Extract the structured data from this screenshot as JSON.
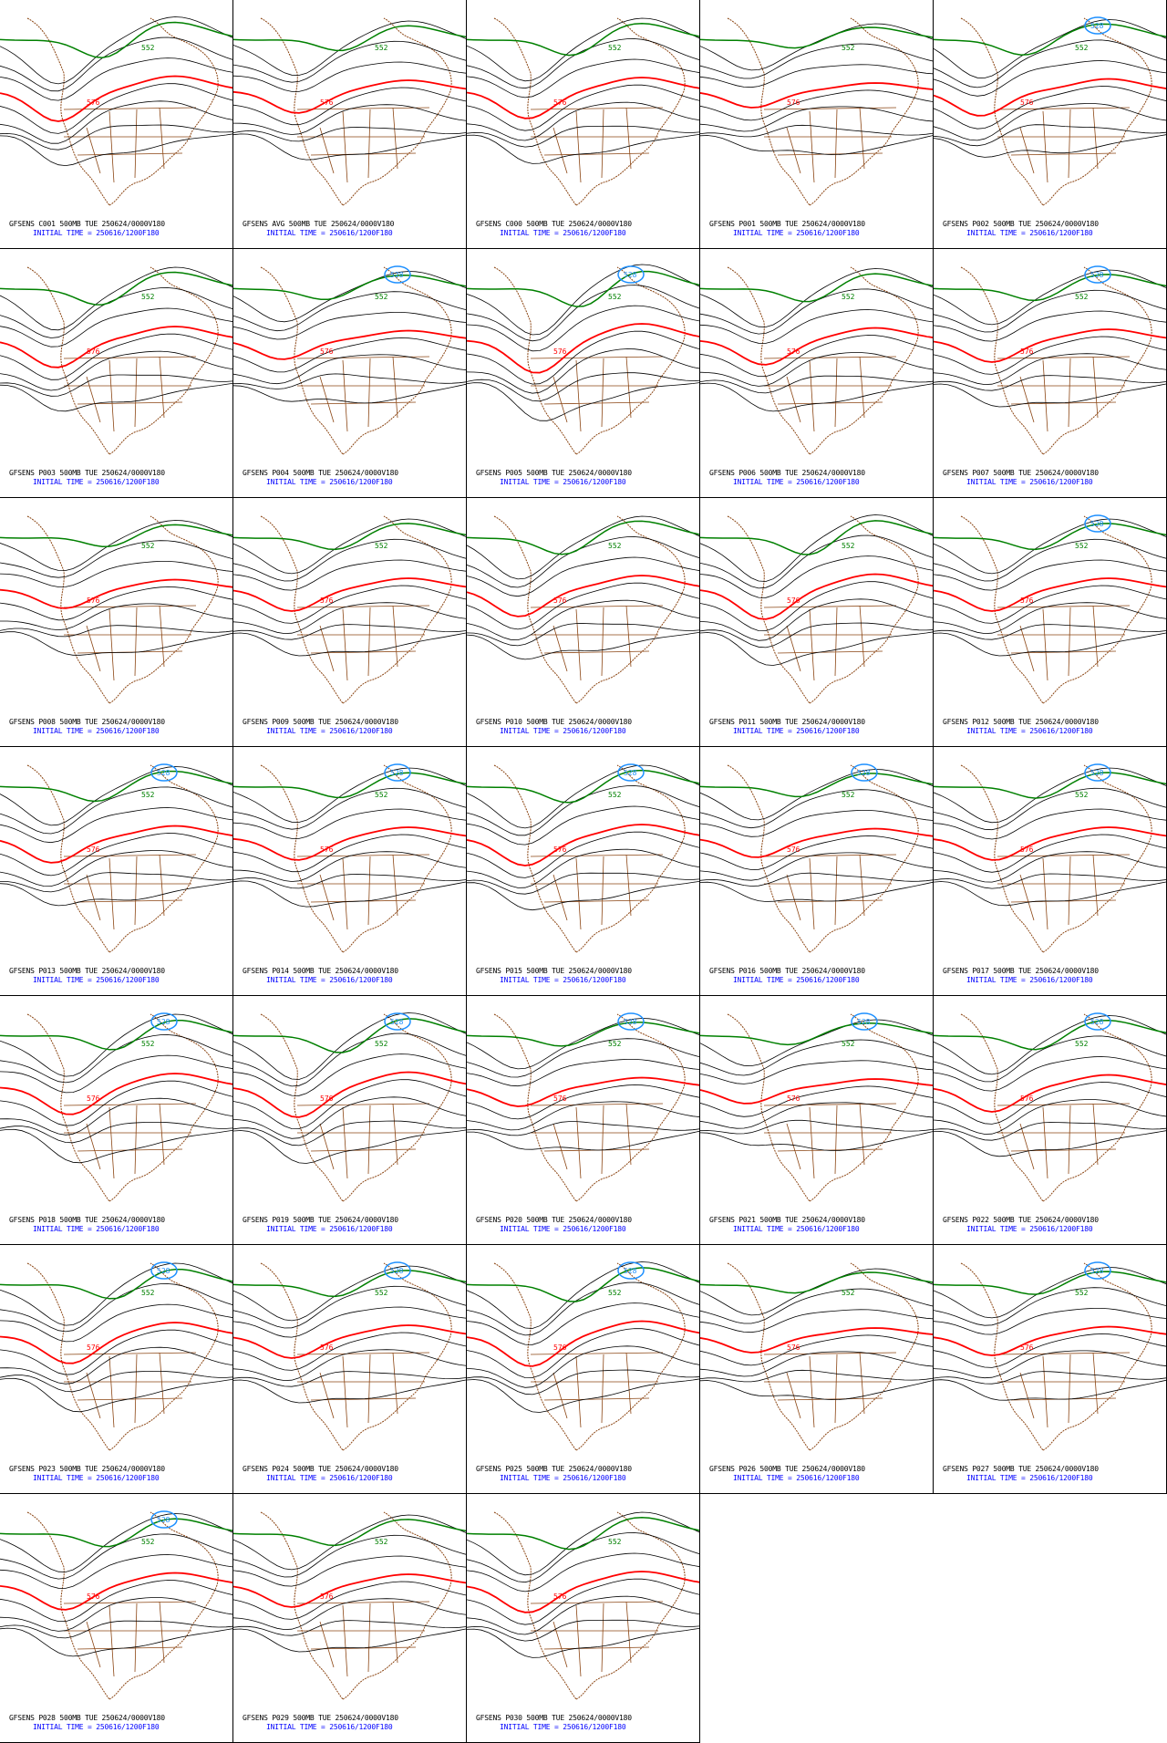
{
  "colors": {
    "background": "#ffffff",
    "contour": "#000000",
    "contour_576": "#ff0000",
    "contour_552": "#008000",
    "contour_low": "#1e90ff",
    "coast": "#8b4513",
    "init_text": "#0000ff"
  },
  "contour_labels": {
    "main": "576",
    "north": "552",
    "low": "528"
  },
  "panels": [
    {
      "title": "GFSENS C001 500MB TUE 250624/0000V180",
      "init": "INITIAL TIME = 250616/1200F180",
      "trough": 0.5,
      "amp": 0.55,
      "low": false,
      "ridge": 0.3
    },
    {
      "title": "GFSENS AVG 500MB TUE 250624/0000V180",
      "init": "INITIAL TIME = 250616/1200F180",
      "trough": 0.55,
      "amp": 0.4,
      "low": false,
      "ridge": 0.25
    },
    {
      "title": "GFSENS C000 500MB TUE 250624/0000V180",
      "init": "INITIAL TIME = 250616/1200F180",
      "trough": 0.52,
      "amp": 0.5,
      "low": false,
      "ridge": 0.35
    },
    {
      "title": "GFSENS P001 500MB TUE 250624/0000V180",
      "init": "INITIAL TIME = 250616/1200F180",
      "trough": 0.45,
      "amp": 0.3,
      "low": false,
      "ridge": 0.2
    },
    {
      "title": "GFSENS P002 500MB TUE 250624/0000V180",
      "init": "INITIAL TIME = 250616/1200F180",
      "trough": 0.4,
      "amp": 0.45,
      "low": true,
      "ridge": 0.4
    },
    {
      "title": "GFSENS P003 500MB TUE 250624/0000V180",
      "init": "INITIAL TIME = 250616/1200F180",
      "trough": 0.48,
      "amp": 0.5,
      "low": false,
      "ridge": 0.3
    },
    {
      "title": "GFSENS P004 500MB TUE 250624/0000V180",
      "init": "INITIAL TIME = 250616/1200F180",
      "trough": 0.42,
      "amp": 0.35,
      "low": true,
      "ridge": 0.25
    },
    {
      "title": "GFSENS P005 500MB TUE 250624/0000V180",
      "init": "INITIAL TIME = 250616/1200F180",
      "trough": 0.6,
      "amp": 0.6,
      "low": true,
      "ridge": 0.35
    },
    {
      "title": "GFSENS P006 500MB TUE 250624/0000V180",
      "init": "INITIAL TIME = 250616/1200F180",
      "trough": 0.55,
      "amp": 0.45,
      "low": false,
      "ridge": 0.3
    },
    {
      "title": "GFSENS P007 500MB TUE 250624/0000V180",
      "init": "INITIAL TIME = 250616/1200F180",
      "trough": 0.5,
      "amp": 0.4,
      "low": true,
      "ridge": 0.35
    },
    {
      "title": "GFSENS P008 500MB TUE 250624/0000V180",
      "init": "INITIAL TIME = 250616/1200F180",
      "trough": 0.55,
      "amp": 0.35,
      "low": false,
      "ridge": 0.3
    },
    {
      "title": "GFSENS P009 500MB TUE 250624/0000V180",
      "init": "INITIAL TIME = 250616/1200F180",
      "trough": 0.5,
      "amp": 0.4,
      "low": false,
      "ridge": 0.25
    },
    {
      "title": "GFSENS P010 500MB TUE 250624/0000V180",
      "init": "INITIAL TIME = 250616/1200F180",
      "trough": 0.45,
      "amp": 0.5,
      "low": false,
      "ridge": 0.3
    },
    {
      "title": "GFSENS P011 500MB TUE 250624/0000V180",
      "init": "INITIAL TIME = 250616/1200F180",
      "trough": 0.55,
      "amp": 0.55,
      "low": false,
      "ridge": 0.4
    },
    {
      "title": "GFSENS P012 500MB TUE 250624/0000V180",
      "init": "INITIAL TIME = 250616/1200F180",
      "trough": 0.5,
      "amp": 0.4,
      "low": true,
      "ridge": 0.3
    },
    {
      "title": "GFSENS P013 500MB TUE 250624/0000V180",
      "init": "INITIAL TIME = 250616/1200F180",
      "trough": 0.45,
      "amp": 0.45,
      "low": true,
      "ridge": 0.35
    },
    {
      "title": "GFSENS P014 500MB TUE 250624/0000V180",
      "init": "INITIAL TIME = 250616/1200F180",
      "trough": 0.55,
      "amp": 0.4,
      "low": true,
      "ridge": 0.3
    },
    {
      "title": "GFSENS P015 500MB TUE 250624/0000V180",
      "init": "INITIAL TIME = 250616/1200F180",
      "trough": 0.5,
      "amp": 0.5,
      "low": true,
      "ridge": 0.25
    },
    {
      "title": "GFSENS P016 500MB TUE 250624/0000V180",
      "init": "INITIAL TIME = 250616/1200F180",
      "trough": 0.48,
      "amp": 0.35,
      "low": true,
      "ridge": 0.3
    },
    {
      "title": "GFSENS P017 500MB TUE 250624/0000V180",
      "init": "INITIAL TIME = 250616/1200F180",
      "trough": 0.52,
      "amp": 0.4,
      "low": true,
      "ridge": 0.35
    },
    {
      "title": "GFSENS P018 500MB TUE 250624/0000V180",
      "init": "INITIAL TIME = 250616/1200F180",
      "trough": 0.6,
      "amp": 0.5,
      "low": true,
      "ridge": 0.35
    },
    {
      "title": "GFSENS P019 500MB TUE 250624/0000V180",
      "init": "INITIAL TIME = 250616/1200F180",
      "trough": 0.55,
      "amp": 0.55,
      "low": true,
      "ridge": 0.3
    },
    {
      "title": "GFSENS P020 500MB TUE 250624/0000V180",
      "init": "INITIAL TIME = 250616/1200F180",
      "trough": 0.45,
      "amp": 0.35,
      "low": true,
      "ridge": 0.25
    },
    {
      "title": "GFSENS P021 500MB TUE 250624/0000V180",
      "init": "INITIAL TIME = 250616/1200F180",
      "trough": 0.4,
      "amp": 0.3,
      "low": true,
      "ridge": 0.4
    },
    {
      "title": "GFSENS P022 500MB TUE 250624/0000V180",
      "init": "INITIAL TIME = 250616/1200F180",
      "trough": 0.5,
      "amp": 0.45,
      "low": true,
      "ridge": 0.35
    },
    {
      "title": "GFSENS P023 500MB TUE 250624/0000V180",
      "init": "INITIAL TIME = 250616/1200F180",
      "trough": 0.6,
      "amp": 0.5,
      "low": true,
      "ridge": 0.3
    },
    {
      "title": "GFSENS P024 500MB TUE 250624/0000V180",
      "init": "INITIAL TIME = 250616/1200F180",
      "trough": 0.5,
      "amp": 0.4,
      "low": true,
      "ridge": 0.3
    },
    {
      "title": "GFSENS P025 500MB TUE 250624/0000V180",
      "init": "INITIAL TIME = 250616/1200F180",
      "trough": 0.55,
      "amp": 0.55,
      "low": true,
      "ridge": 0.25
    },
    {
      "title": "GFSENS P026 500MB TUE 250624/0000V180",
      "init": "INITIAL TIME = 250616/1200F180",
      "trough": 0.45,
      "amp": 0.3,
      "low": false,
      "ridge": 0.35
    },
    {
      "title": "GFSENS P027 500MB TUE 250624/0000V180",
      "init": "INITIAL TIME = 250616/1200F180",
      "trough": 0.5,
      "amp": 0.35,
      "low": true,
      "ridge": 0.3
    },
    {
      "title": "GFSENS P028 500MB TUE 250624/0000V180",
      "init": "INITIAL TIME = 250616/1200F180",
      "trough": 0.55,
      "amp": 0.45,
      "low": true,
      "ridge": 0.4
    },
    {
      "title": "GFSENS P029 500MB TUE 250624/0000V180",
      "init": "INITIAL TIME = 250616/1200F180",
      "trough": 0.5,
      "amp": 0.4,
      "low": false,
      "ridge": 0.3
    },
    {
      "title": "GFSENS P030 500MB TUE 250624/0000V180",
      "init": "INITIAL TIME = 250616/1200F180",
      "trough": 0.52,
      "amp": 0.5,
      "low": false,
      "ridge": 0.3
    }
  ]
}
